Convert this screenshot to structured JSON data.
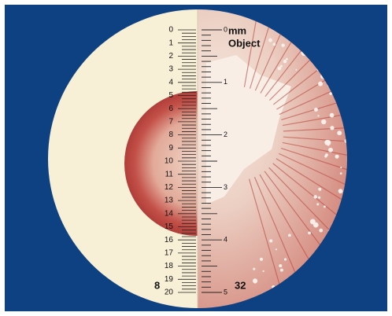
{
  "left_scale": {
    "ticks": [
      0,
      1,
      2,
      3,
      4,
      5,
      6,
      7,
      8,
      9,
      10,
      11,
      12,
      13,
      14,
      15,
      16,
      17,
      18,
      19,
      20
    ]
  },
  "right_scale": {
    "ticks": [
      0,
      1,
      2,
      3,
      4,
      5
    ]
  },
  "unit": "mm",
  "label": "Object",
  "left_magnification": "8",
  "right_magnification": "32"
}
